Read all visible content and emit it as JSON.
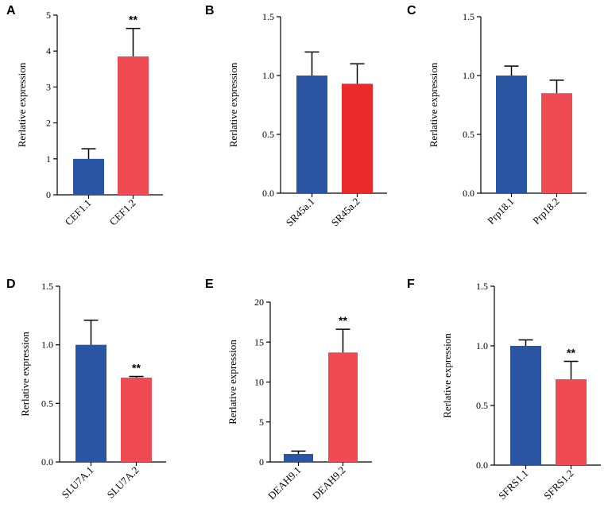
{
  "chart_data": [
    {
      "panel": "A",
      "type": "bar",
      "ylabel": "Rerlative expression",
      "ylim": [
        0,
        5
      ],
      "ticks": [
        "0",
        "1",
        "2",
        "3",
        "4",
        "5"
      ],
      "categories": [
        "CEF1.1",
        "CEF1.2"
      ],
      "values": [
        1.0,
        3.85
      ],
      "errors": [
        0.28,
        0.78
      ],
      "significance": [
        "",
        "**"
      ],
      "colors": [
        "#2955a3",
        "#ef4b53"
      ]
    },
    {
      "panel": "B",
      "type": "bar",
      "ylabel": "Rerlative expression",
      "ylim": [
        0,
        1.5
      ],
      "ticks": [
        "0.0",
        "0.5",
        "1.0",
        "1.5"
      ],
      "categories": [
        "SR45a.1",
        "SR45a.2"
      ],
      "values": [
        1.0,
        0.93
      ],
      "errors": [
        0.2,
        0.17
      ],
      "significance": [
        "",
        ""
      ],
      "colors": [
        "#2955a3",
        "#eb2a2c"
      ]
    },
    {
      "panel": "C",
      "type": "bar",
      "ylabel": "Rerlative expression",
      "ylim": [
        0,
        1.5
      ],
      "ticks": [
        "0.0",
        "0.5",
        "1.0",
        "1.5"
      ],
      "categories": [
        "Prp18.1",
        "Prp18.2"
      ],
      "values": [
        1.0,
        0.85
      ],
      "errors": [
        0.08,
        0.11
      ],
      "significance": [
        "",
        ""
      ],
      "colors": [
        "#2955a3",
        "#ef4b53"
      ]
    },
    {
      "panel": "D",
      "type": "bar",
      "ylabel": "Rerlative expression",
      "ylim": [
        0,
        1.5
      ],
      "ticks": [
        "0.0",
        "0.5",
        "1.0",
        "1.5"
      ],
      "categories": [
        "SLU7A.1",
        "SLU7A.2"
      ],
      "values": [
        1.0,
        0.72
      ],
      "errors": [
        0.21,
        0.01
      ],
      "significance": [
        "",
        "**"
      ],
      "colors": [
        "#2955a3",
        "#ef4b53"
      ]
    },
    {
      "panel": "E",
      "type": "bar",
      "ylabel": "Rerlative expression",
      "ylim": [
        0,
        20
      ],
      "ticks": [
        "0",
        "5",
        "10",
        "15",
        "20"
      ],
      "categories": [
        "DEAH9.1",
        "DEAH9.2"
      ],
      "values": [
        1.0,
        13.7
      ],
      "errors": [
        0.35,
        2.9
      ],
      "significance": [
        "",
        "**"
      ],
      "colors": [
        "#2955a3",
        "#ef4b53"
      ]
    },
    {
      "panel": "F",
      "type": "bar",
      "ylabel": "Rerlative expression",
      "ylim": [
        0,
        1.5
      ],
      "ticks": [
        "0.0",
        "0.5",
        "1.0",
        "1.5"
      ],
      "categories": [
        "SFRS1.1",
        "SFRS1.2"
      ],
      "values": [
        1.0,
        0.72
      ],
      "errors": [
        0.05,
        0.15
      ],
      "significance": [
        "",
        "**"
      ],
      "colors": [
        "#2955a3",
        "#ef4b53"
      ]
    }
  ]
}
